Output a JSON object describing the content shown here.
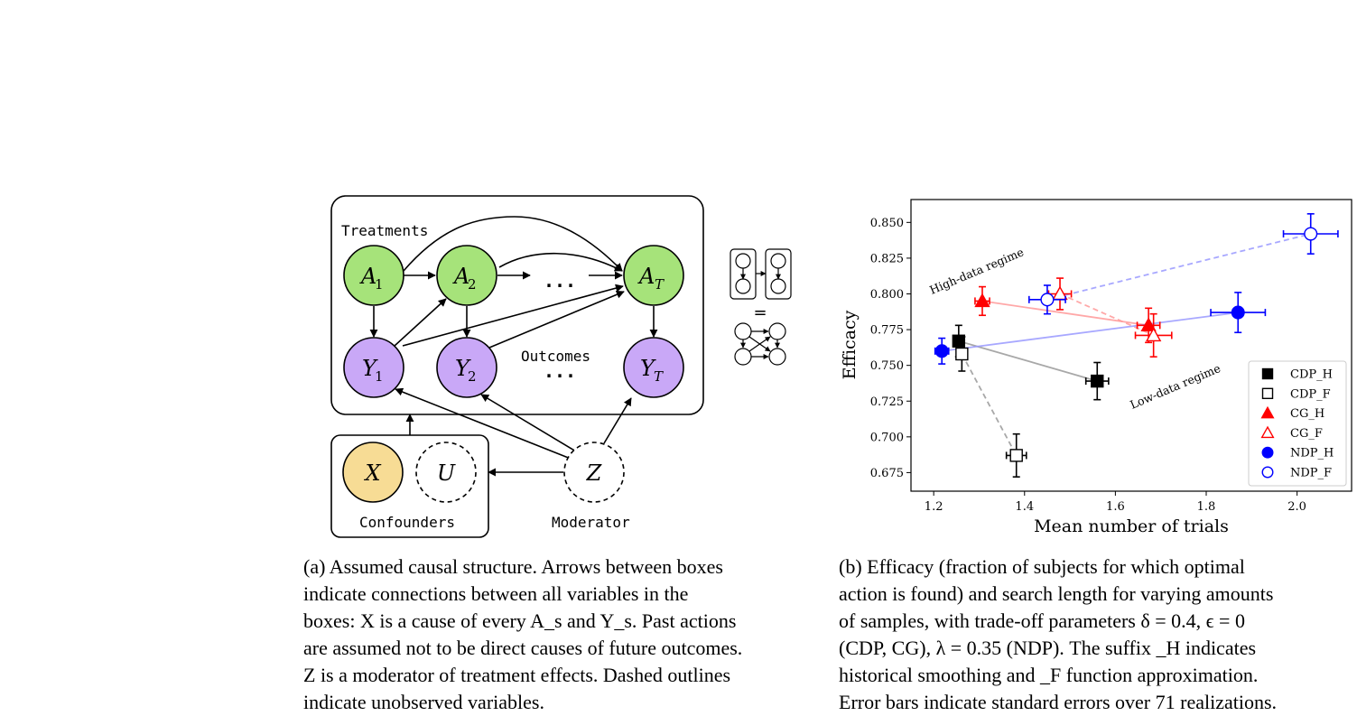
{
  "diagram": {
    "treatments_label": "Treatments",
    "outcomes_label": "Outcomes",
    "confounders_label": "Confounders",
    "moderator_label": "Moderator",
    "ellipsis": "...",
    "equals": "=",
    "nodes": {
      "A1": {
        "base": "A",
        "sub": "1"
      },
      "A2": {
        "base": "A",
        "sub": "2"
      },
      "AT": {
        "base": "A",
        "sub": "T"
      },
      "Y1": {
        "base": "Y",
        "sub": "1"
      },
      "Y2": {
        "base": "Y",
        "sub": "2"
      },
      "YT": {
        "base": "Y",
        "sub": "T"
      },
      "X": {
        "base": "X"
      },
      "U": {
        "base": "U"
      },
      "Z": {
        "base": "Z"
      }
    },
    "colors": {
      "treatment": "#a6e37a",
      "outcome": "#c9a8f7",
      "confounder": "#f7dc95"
    }
  },
  "chart_data": {
    "type": "scatter",
    "xlabel": "Mean number of trials",
    "ylabel": "Efficacy",
    "xlim": [
      1.15,
      2.12
    ],
    "ylim": [
      0.662,
      0.866
    ],
    "xticks": [
      "1.2",
      "1.4",
      "1.6",
      "1.8",
      "2.0"
    ],
    "yticks": [
      "0.850",
      "0.825",
      "0.800",
      "0.775",
      "0.750",
      "0.725",
      "0.700",
      "0.675"
    ],
    "annotations": [
      "High-data regime",
      "Low-data regime"
    ],
    "legend_position": "lower-right",
    "series": [
      {
        "name": "CDP_H",
        "color": "#000000",
        "marker": "square",
        "filled": true,
        "points": [
          {
            "x": 1.255,
            "y": 0.767,
            "xe": 0.012,
            "ye": 0.011
          },
          {
            "x": 1.56,
            "y": 0.739,
            "xe": 0.025,
            "ye": 0.013
          }
        ]
      },
      {
        "name": "CDP_F",
        "color": "#000000",
        "marker": "square",
        "filled": false,
        "points": [
          {
            "x": 1.262,
            "y": 0.758,
            "xe": 0.012,
            "ye": 0.012
          },
          {
            "x": 1.382,
            "y": 0.687,
            "xe": 0.022,
            "ye": 0.015
          }
        ]
      },
      {
        "name": "CG_H",
        "color": "#ff0000",
        "marker": "triangle",
        "filled": true,
        "points": [
          {
            "x": 1.307,
            "y": 0.795,
            "xe": 0.016,
            "ye": 0.01
          },
          {
            "x": 1.673,
            "y": 0.778,
            "xe": 0.025,
            "ye": 0.012
          }
        ]
      },
      {
        "name": "CG_F",
        "color": "#ff0000",
        "marker": "triangle",
        "filled": false,
        "points": [
          {
            "x": 1.478,
            "y": 0.8,
            "xe": 0.025,
            "ye": 0.011
          },
          {
            "x": 1.684,
            "y": 0.771,
            "xe": 0.04,
            "ye": 0.015
          }
        ]
      },
      {
        "name": "NDP_H",
        "color": "#0000ff",
        "marker": "circle",
        "filled": true,
        "points": [
          {
            "x": 1.218,
            "y": 0.76,
            "xe": 0.015,
            "ye": 0.009
          },
          {
            "x": 1.87,
            "y": 0.787,
            "xe": 0.06,
            "ye": 0.014
          }
        ]
      },
      {
        "name": "NDP_F",
        "color": "#0000ff",
        "marker": "circle",
        "filled": false,
        "points": [
          {
            "x": 1.45,
            "y": 0.796,
            "xe": 0.04,
            "ye": 0.01
          },
          {
            "x": 2.03,
            "y": 0.842,
            "xe": 0.06,
            "ye": 0.014
          }
        ]
      }
    ]
  },
  "captions": {
    "a": [
      "(a) Assumed causal structure. Arrows between boxes",
      "indicate connections between all variables in the",
      "boxes: X is a cause of every A_s and Y_s. Past actions",
      "are assumed not to be direct causes of future outcomes.",
      "Z is a moderator of treatment effects. Dashed outlines",
      "indicate unobserved variables."
    ],
    "b": [
      "(b) Efficacy (fraction of subjects for which optimal",
      "action is found) and search length for varying amounts",
      "of samples, with trade-off parameters δ = 0.4, ϵ = 0",
      "(CDP, CG), λ = 0.35 (NDP). The suffix _H indicates",
      "historical smoothing and _F function approximation.",
      "Error bars indicate standard errors over 71 realizations."
    ]
  }
}
